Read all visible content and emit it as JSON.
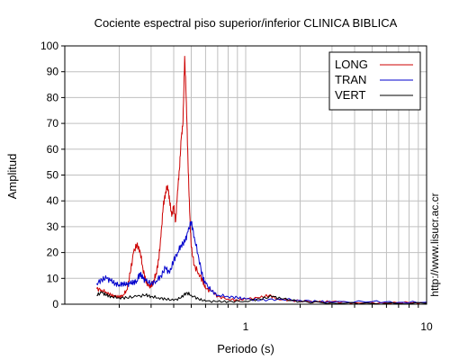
{
  "chart_data": {
    "type": "line",
    "title": "Cociente espectral piso superior/inferior  CLINICA BIBLICA",
    "xlabel": "Periodo (s)",
    "ylabel": "Amplitud",
    "xscale": "log",
    "xlim": [
      0.1,
      10
    ],
    "ylim": [
      0,
      100
    ],
    "grid": true,
    "legend_position": "top-right",
    "x_tick_labels": [
      {
        "value": 1,
        "label": "1"
      },
      {
        "value": 10,
        "label": "10"
      }
    ],
    "y_tick_labels": [
      "0",
      "10",
      "20",
      "30",
      "40",
      "50",
      "60",
      "70",
      "80",
      "90",
      "100"
    ],
    "y_ticks": [
      0,
      10,
      20,
      30,
      40,
      50,
      60,
      70,
      80,
      90,
      100
    ],
    "series": [
      {
        "name": "LONG",
        "color": "#cc0000",
        "points": [
          [
            0.15,
            6
          ],
          [
            0.16,
            5.5
          ],
          [
            0.17,
            4.5
          ],
          [
            0.18,
            3.5
          ],
          [
            0.19,
            3
          ],
          [
            0.2,
            2.8
          ],
          [
            0.21,
            3.5
          ],
          [
            0.22,
            5.5
          ],
          [
            0.23,
            12
          ],
          [
            0.24,
            20
          ],
          [
            0.25,
            23
          ],
          [
            0.26,
            21
          ],
          [
            0.27,
            14
          ],
          [
            0.28,
            9
          ],
          [
            0.29,
            7
          ],
          [
            0.3,
            7
          ],
          [
            0.31,
            9
          ],
          [
            0.32,
            12
          ],
          [
            0.33,
            17
          ],
          [
            0.34,
            26
          ],
          [
            0.35,
            38
          ],
          [
            0.36,
            43
          ],
          [
            0.37,
            46
          ],
          [
            0.38,
            40
          ],
          [
            0.39,
            34
          ],
          [
            0.4,
            38
          ],
          [
            0.41,
            32
          ],
          [
            0.42,
            44
          ],
          [
            0.43,
            52
          ],
          [
            0.44,
            64
          ],
          [
            0.45,
            70
          ],
          [
            0.46,
            96
          ],
          [
            0.47,
            78
          ],
          [
            0.48,
            55
          ],
          [
            0.49,
            36
          ],
          [
            0.5,
            22
          ],
          [
            0.52,
            15
          ],
          [
            0.55,
            12
          ],
          [
            0.58,
            9
          ],
          [
            0.6,
            6
          ],
          [
            0.65,
            5
          ],
          [
            0.7,
            3
          ],
          [
            0.8,
            2
          ],
          [
            0.9,
            1.5
          ],
          [
            1.0,
            2
          ],
          [
            1.2,
            2.5
          ],
          [
            1.35,
            3.5
          ],
          [
            1.5,
            2
          ],
          [
            1.8,
            1.5
          ],
          [
            2.2,
            1
          ],
          [
            2.5,
            0.8
          ],
          [
            3.0,
            1
          ],
          [
            4.0,
            0.6
          ],
          [
            6.0,
            0.5
          ],
          [
            8.0,
            0.6
          ],
          [
            10,
            0.5
          ]
        ]
      },
      {
        "name": "TRAN",
        "color": "#0000cc",
        "points": [
          [
            0.15,
            8
          ],
          [
            0.16,
            9.5
          ],
          [
            0.17,
            10
          ],
          [
            0.18,
            9
          ],
          [
            0.19,
            8
          ],
          [
            0.2,
            7.5
          ],
          [
            0.21,
            8
          ],
          [
            0.22,
            7.5
          ],
          [
            0.23,
            8
          ],
          [
            0.24,
            8.5
          ],
          [
            0.25,
            9
          ],
          [
            0.26,
            12
          ],
          [
            0.27,
            10
          ],
          [
            0.28,
            9
          ],
          [
            0.3,
            8
          ],
          [
            0.32,
            9
          ],
          [
            0.34,
            11
          ],
          [
            0.36,
            14
          ],
          [
            0.38,
            12
          ],
          [
            0.4,
            17
          ],
          [
            0.42,
            20
          ],
          [
            0.44,
            23
          ],
          [
            0.46,
            24
          ],
          [
            0.48,
            28
          ],
          [
            0.5,
            32
          ],
          [
            0.52,
            26
          ],
          [
            0.55,
            18
          ],
          [
            0.58,
            10
          ],
          [
            0.6,
            8
          ],
          [
            0.65,
            5
          ],
          [
            0.7,
            3.5
          ],
          [
            0.8,
            3
          ],
          [
            0.9,
            2.5
          ],
          [
            1.0,
            2
          ],
          [
            1.2,
            1.5
          ],
          [
            1.5,
            2
          ],
          [
            2.0,
            1.5
          ],
          [
            2.5,
            1
          ],
          [
            3.0,
            0.8
          ],
          [
            5.0,
            1
          ],
          [
            7.0,
            0.7
          ],
          [
            10,
            0.8
          ]
        ]
      },
      {
        "name": "VERT",
        "color": "#000000",
        "points": [
          [
            0.15,
            3.5
          ],
          [
            0.16,
            4.5
          ],
          [
            0.17,
            3.5
          ],
          [
            0.18,
            3
          ],
          [
            0.2,
            2.5
          ],
          [
            0.22,
            2.5
          ],
          [
            0.25,
            3
          ],
          [
            0.28,
            3.5
          ],
          [
            0.3,
            3
          ],
          [
            0.33,
            2.5
          ],
          [
            0.36,
            2
          ],
          [
            0.4,
            1.5
          ],
          [
            0.44,
            2.5
          ],
          [
            0.47,
            4.5
          ],
          [
            0.5,
            3.5
          ],
          [
            0.55,
            2
          ],
          [
            0.6,
            1.2
          ],
          [
            0.7,
            1
          ],
          [
            0.8,
            1
          ],
          [
            1.0,
            1.2
          ],
          [
            1.2,
            2
          ],
          [
            1.4,
            3
          ],
          [
            1.6,
            2
          ],
          [
            2.0,
            1
          ],
          [
            3.0,
            0.5
          ],
          [
            5.0,
            0.3
          ],
          [
            10,
            0.3
          ]
        ]
      }
    ]
  },
  "side_label": "http://www.lisucr.ac.cr"
}
